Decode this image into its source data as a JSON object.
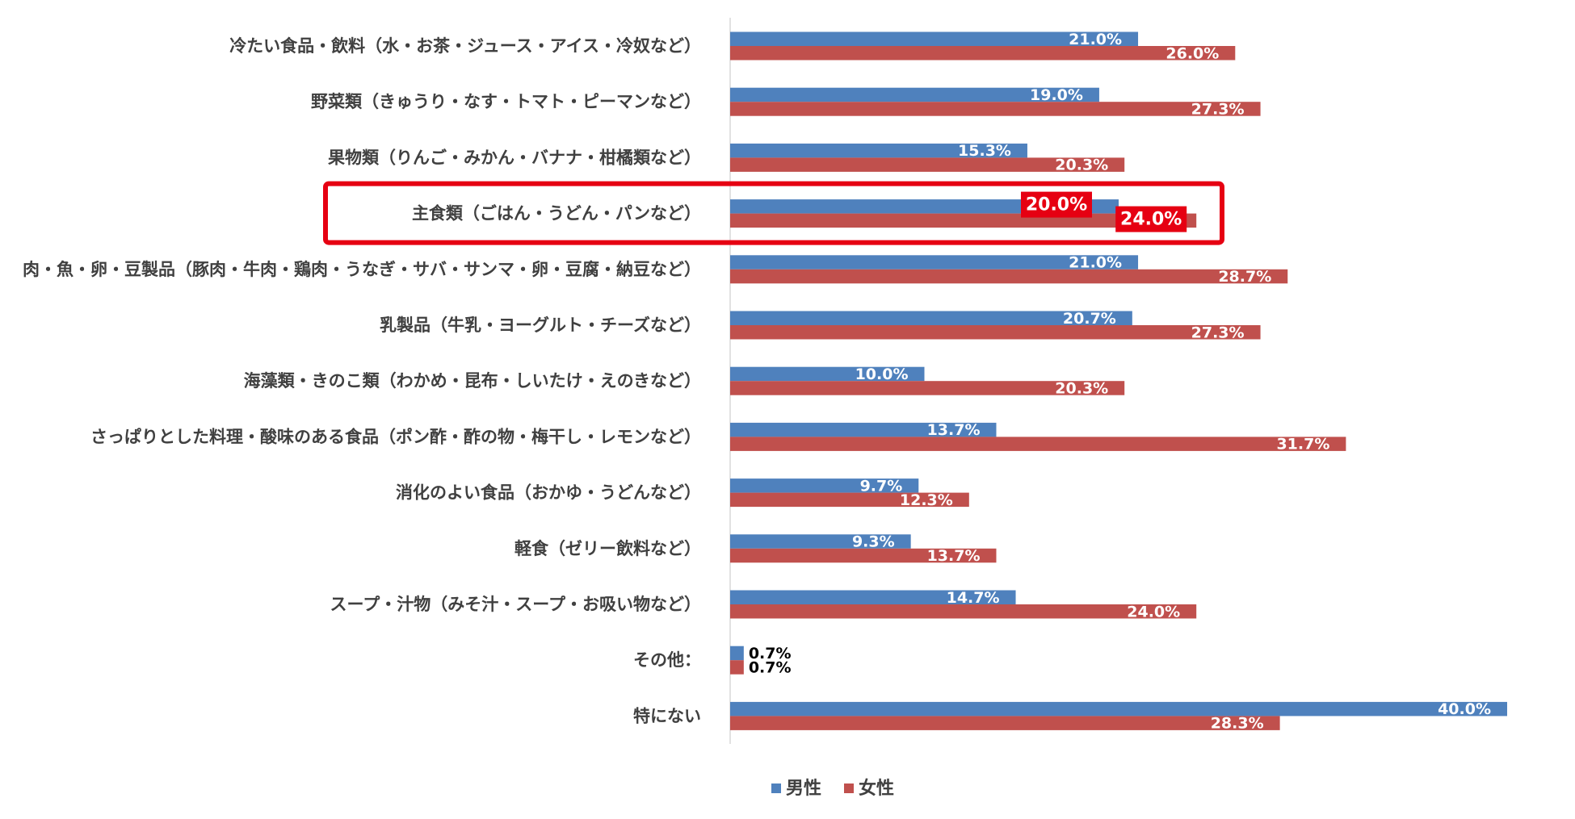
{
  "chart_data": {
    "type": "bar",
    "orientation": "horizontal",
    "categories": [
      "冷たい食品・飲料（水・お茶・ジュース・アイス・冷奴など）",
      "野菜類（きゅうり・なす・トマト・ピーマンなど）",
      "果物類（りんご・みかん・バナナ・柑橘類など）",
      "主食類（ごはん・うどん・パンなど）",
      "肉・魚・卵・豆製品（豚肉・牛肉・鶏肉・うなぎ・サバ・サンマ・卵・豆腐・納豆など）",
      "乳製品（牛乳・ヨーグルト・チーズなど）",
      "海藻類・きのこ類（わかめ・昆布・しいたけ・えのきなど）",
      "さっぱりとした料理・酸味のある食品（ポン酢・酢の物・梅干し・レモンなど）",
      "消化のよい食品（おかゆ・うどんなど）",
      "軽食（ゼリー飲料など）",
      "スープ・汁物（みそ汁・スープ・お吸い物など）",
      "その他：",
      "特にない"
    ],
    "series": [
      {
        "name": "男性",
        "color": "#4F81BD",
        "values": [
          21.0,
          19.0,
          15.3,
          20.0,
          21.0,
          20.7,
          10.0,
          13.7,
          9.7,
          9.3,
          14.7,
          0.7,
          40.0
        ],
        "labels": [
          "21.0%",
          "19.0%",
          "15.3%",
          "20.0%",
          "21.0%",
          "20.7%",
          "10.0%",
          "13.7%",
          "9.7%",
          "9.3%",
          "14.7%",
          "0.7%",
          "40.0%"
        ]
      },
      {
        "name": "女性",
        "color": "#C0504D",
        "values": [
          26.0,
          27.3,
          20.3,
          24.0,
          28.7,
          27.3,
          20.3,
          31.7,
          12.3,
          13.7,
          24.0,
          0.7,
          28.3
        ],
        "labels": [
          "26.0%",
          "27.3%",
          "20.3%",
          "24.0%",
          "28.7%",
          "27.3%",
          "20.3%",
          "31.7%",
          "12.3%",
          "13.7%",
          "24.0%",
          "0.7%",
          "28.3%"
        ]
      }
    ],
    "highlighted_category": "主食類（ごはん・うどん・パンなど）",
    "highlight_color": "#E60012",
    "xlim": [
      0,
      40
    ],
    "grid": false,
    "legend_position": "bottom"
  }
}
